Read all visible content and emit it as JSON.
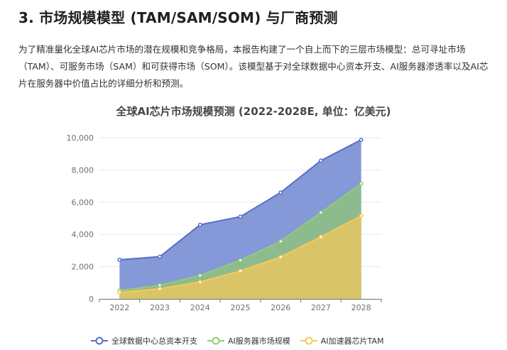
{
  "section": {
    "heading": "3. 市场规模模型 (TAM/SAM/SOM) 与厂商预测",
    "paragraph": "为了精准量化全球AI芯片市场的潜在规模和竞争格局，本报告构建了一个自上而下的三层市场模型：总可寻址市场（TAM）、可服务市场（SAM）和可获得市场（SOM）。该模型基于对全球数据中心资本开支、AI服务器渗透率以及AI芯片在服务器中价值占比的详细分析和预测。"
  },
  "chart_data": {
    "type": "area",
    "title": "全球AI芯片市场规模预测 (2022-2028E, 单位：亿美元)",
    "xlabel": "",
    "ylabel": "",
    "categories": [
      "2022",
      "2023",
      "2024",
      "2025",
      "2026",
      "2027",
      "2028"
    ],
    "ylim": [
      0,
      10000
    ],
    "yticks": [
      0,
      2000,
      4000,
      6000,
      8000,
      10000
    ],
    "ytick_labels": [
      "0",
      "2,000",
      "4,000",
      "6,000",
      "8,000",
      "10,000"
    ],
    "grid": true,
    "legend_position": "bottom",
    "series": [
      {
        "name": "全球数据中心总资本开支",
        "values": [
          2430,
          2620,
          4600,
          5100,
          6600,
          8580,
          9870
        ],
        "line_color": "#5470c6",
        "fill_color": "#8598d8"
      },
      {
        "name": "AI服务器市场规模",
        "values": [
          520,
          850,
          1450,
          2400,
          3570,
          5360,
          7150
        ],
        "line_color": "#91cc75",
        "fill_color": "#8cbc8e"
      },
      {
        "name": "AI加速器芯片TAM",
        "values": [
          400,
          630,
          1050,
          1730,
          2600,
          3850,
          5150
        ],
        "line_color": "#fac858",
        "fill_color": "#d9c567"
      }
    ]
  }
}
